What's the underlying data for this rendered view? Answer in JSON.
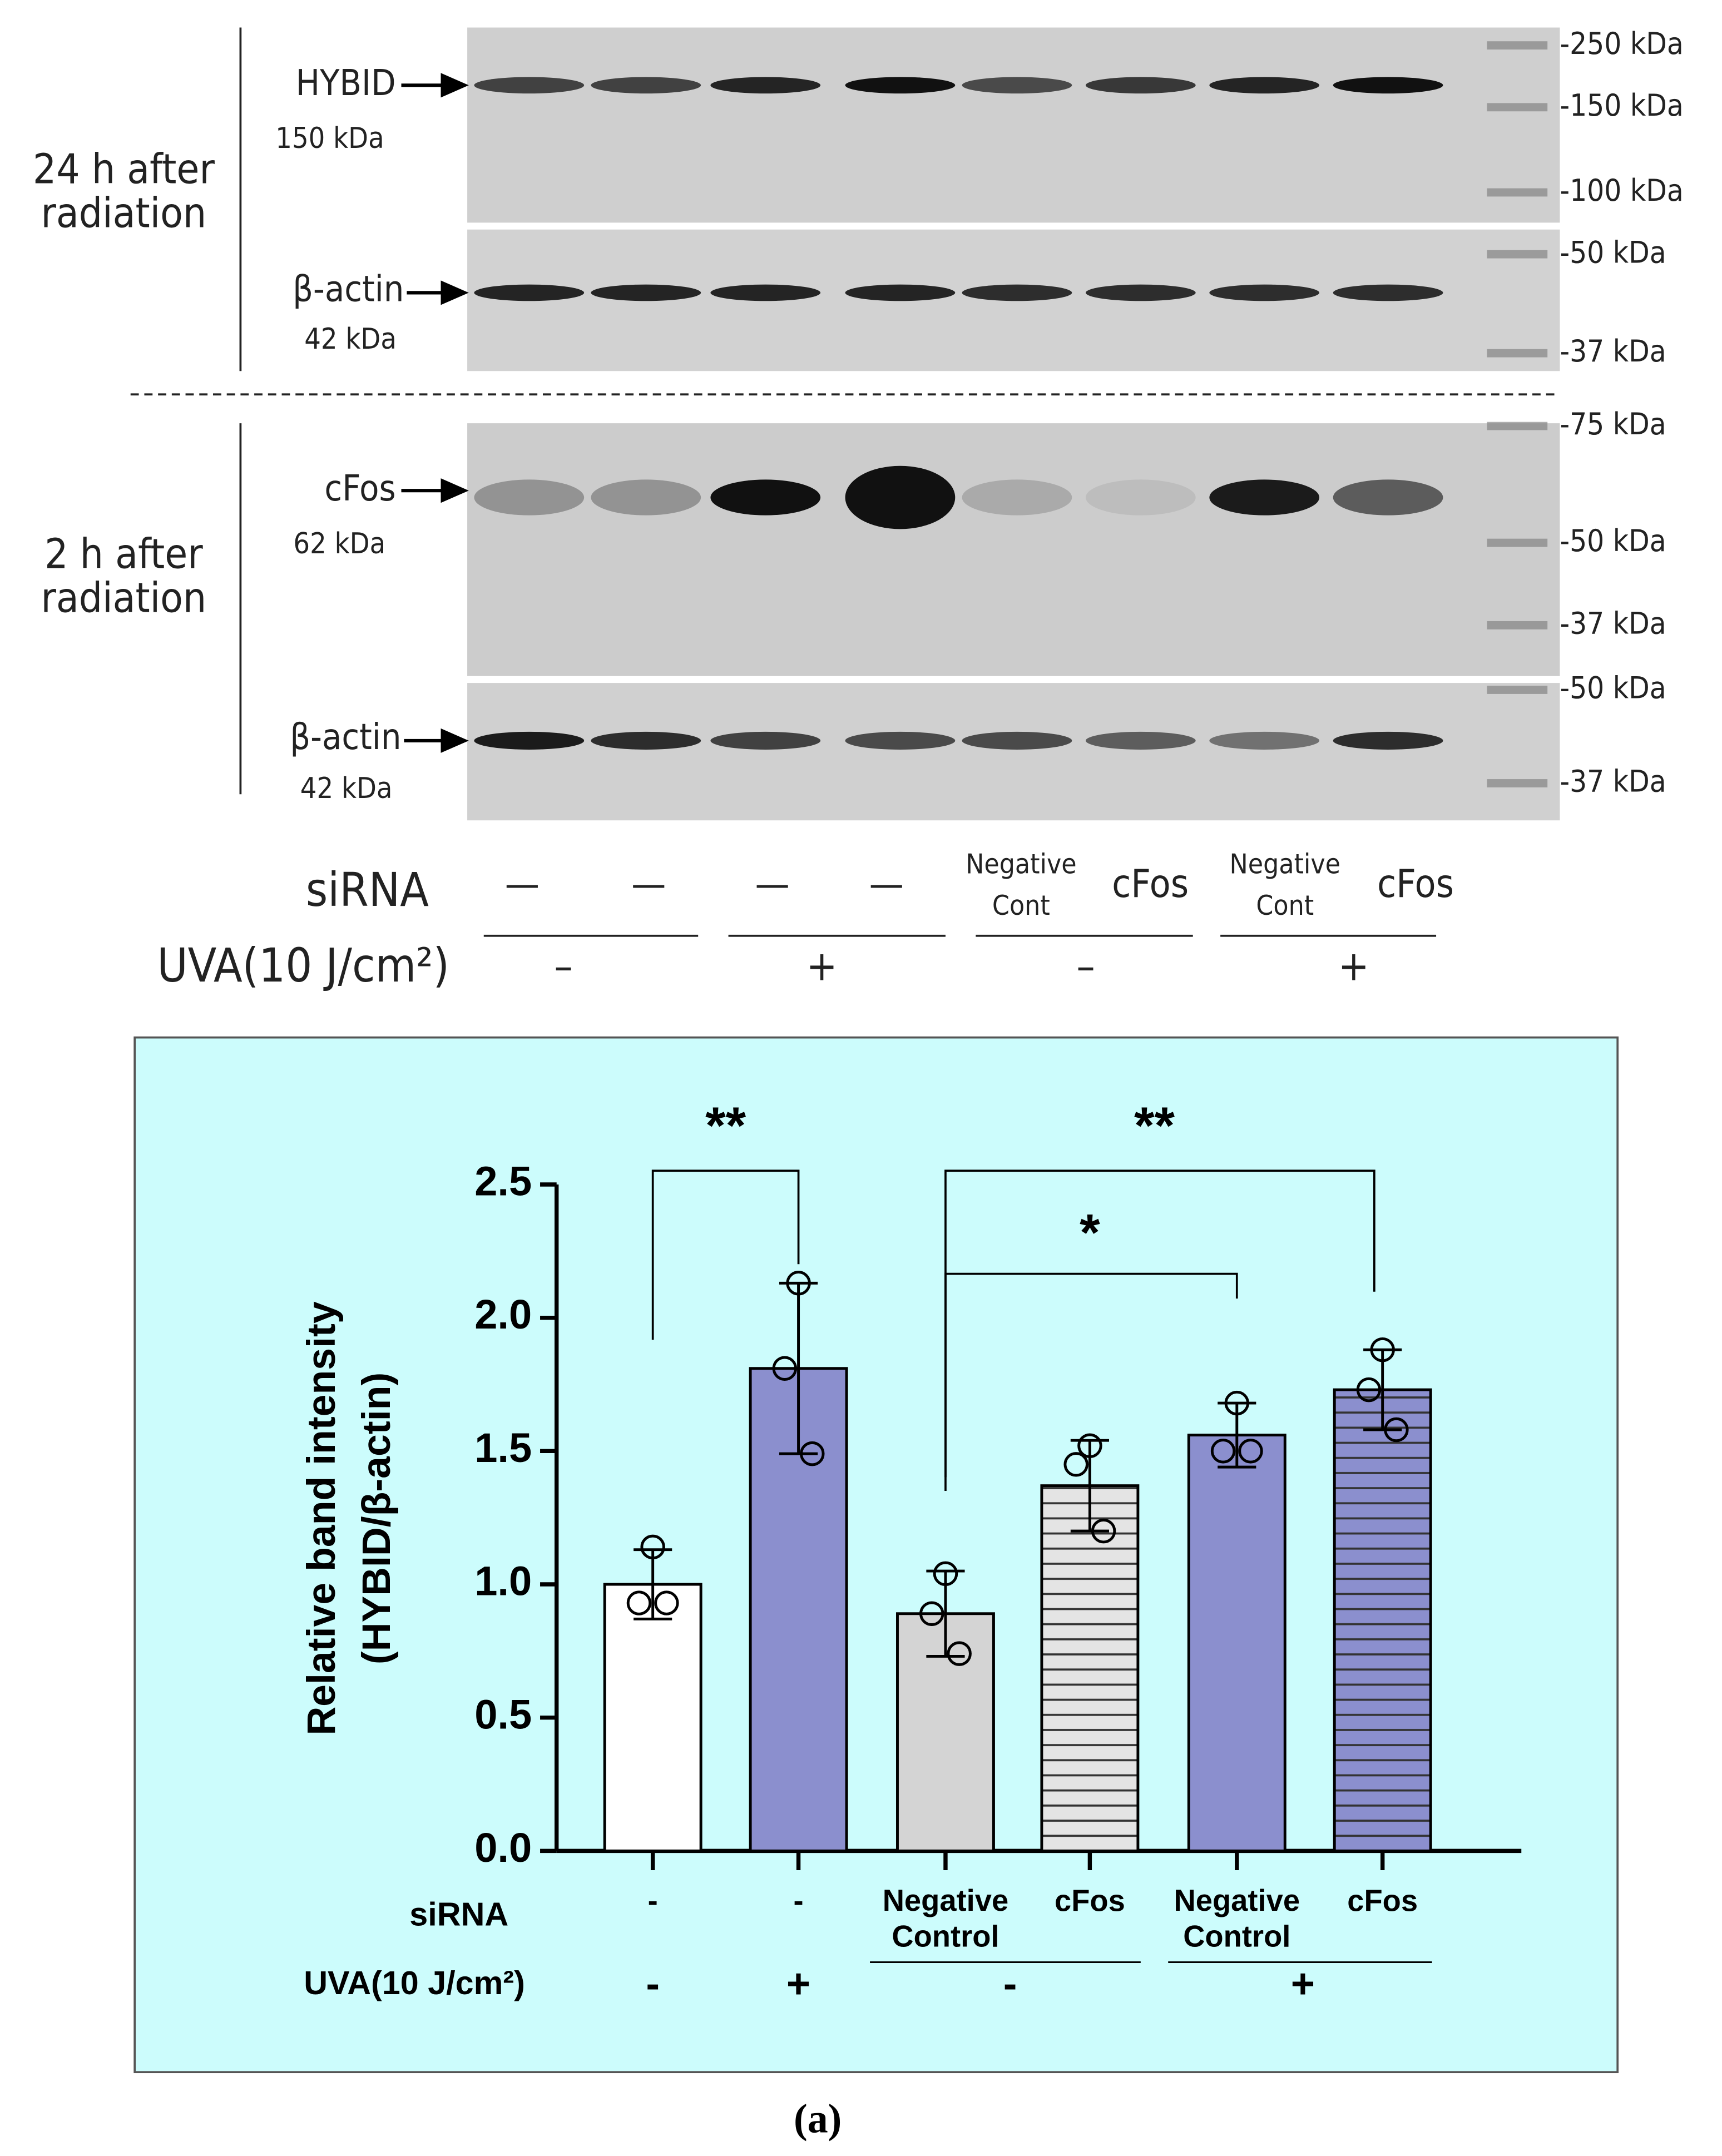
{
  "blot": {
    "panels": [
      {
        "time": [
          "24 h after",
          "radiation"
        ],
        "rows": [
          {
            "protein": "HYBID",
            "size": "150 kDa"
          },
          {
            "protein": "β-actin",
            "size": "42 kDa"
          }
        ]
      },
      {
        "time": [
          "2 h after",
          "radiation"
        ],
        "rows": [
          {
            "protein": "cFos",
            "size": "62 kDa"
          },
          {
            "protein": "β-actin",
            "size": "42 kDa"
          }
        ]
      }
    ],
    "markers": [
      "-250 kDa",
      "-150 kDa",
      "-100 kDa",
      "-50 kDa",
      "-37 kDa",
      "-75 kDa",
      "-50 kDa",
      "-37 kDa",
      "-50 kDa",
      "-37 kDa"
    ],
    "sirna_label": "siRNA",
    "sirna": [
      "—",
      "—",
      "—",
      "—",
      "Negative Cont",
      "cFos",
      "Negative Cont",
      "cFos"
    ],
    "uva_label": "UVA(10 J/cm²)",
    "uva": [
      "–",
      "+",
      "–",
      "+"
    ]
  },
  "chart_data": {
    "type": "bar",
    "ylabel": [
      "Relative band intensity",
      "(HYBID/β-actin)"
    ],
    "row_labels": [
      "siRNA",
      "UVA(10 J/cm²)"
    ],
    "categories": [
      "-",
      "-",
      "Negative Control",
      "cFos",
      "Negative Control",
      "cFos"
    ],
    "uva_labels": [
      "-",
      "+",
      "-",
      "+"
    ],
    "values": [
      1.0,
      1.81,
      0.89,
      1.37,
      1.56,
      1.73
    ],
    "errors": [
      0.13,
      0.32,
      0.16,
      0.17,
      0.12,
      0.15
    ],
    "points": [
      [
        1.14,
        0.93,
        0.93
      ],
      [
        2.13,
        1.81,
        1.49
      ],
      [
        1.04,
        0.89,
        0.74
      ],
      [
        1.52,
        1.45,
        1.2
      ],
      [
        1.68,
        1.5,
        1.5
      ],
      [
        1.88,
        1.73,
        1.58
      ]
    ],
    "colors": [
      "#ffffff",
      "#8b8fce",
      "#d4d4d4",
      "#e4e4e4",
      "#8b8fce",
      "#8b8fce"
    ],
    "hatched": [
      false,
      false,
      false,
      true,
      false,
      true
    ],
    "annotations": [
      "**",
      "*",
      "**"
    ],
    "ylim": [
      0,
      2.5
    ],
    "yticks": [
      {
        "value": 0,
        "label": "0.0"
      },
      0.5,
      {
        "value": 1,
        "label": "1.0"
      },
      1.5,
      {
        "value": 2,
        "label": "2.0"
      },
      2.5
    ],
    "caption": "(a)"
  }
}
